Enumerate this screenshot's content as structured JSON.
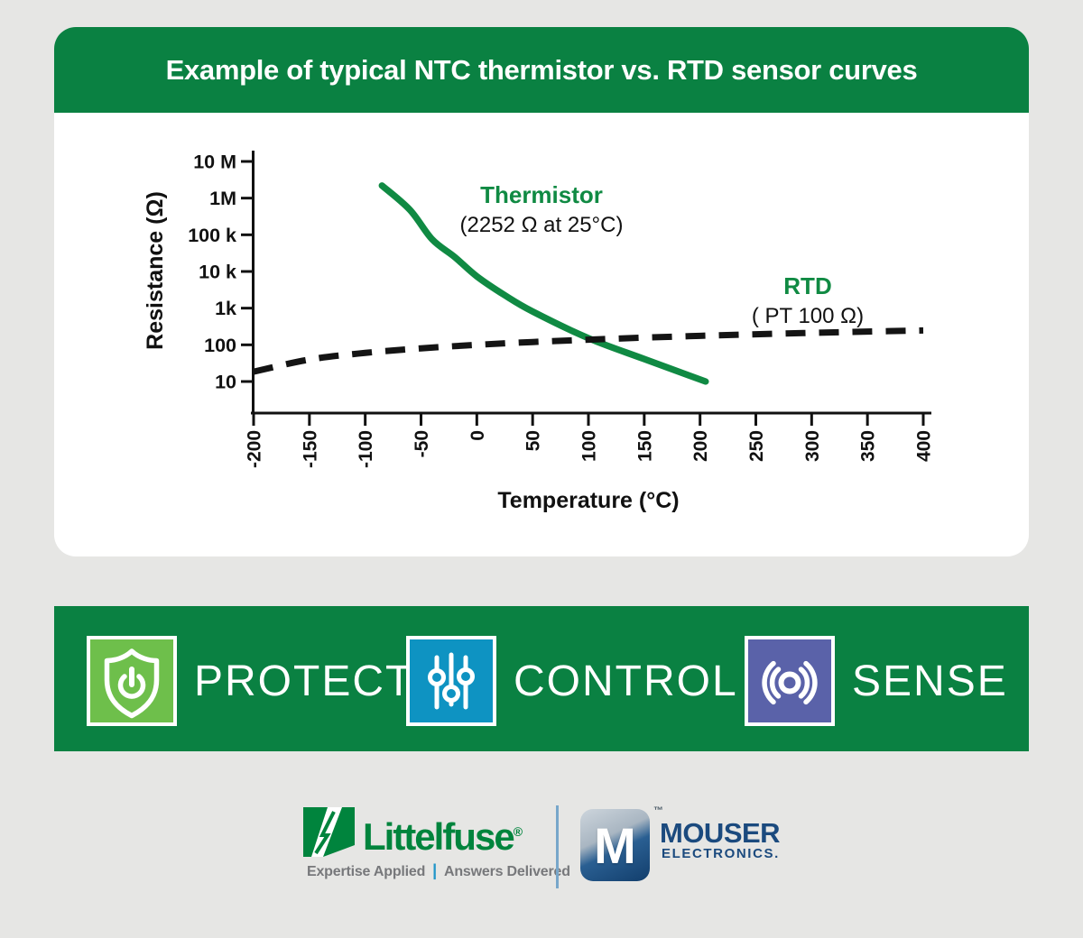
{
  "header": {
    "title": "Example of typical NTC thermistor vs. RTD sensor curves"
  },
  "chart_data": {
    "type": "line",
    "title": "Example of typical NTC thermistor vs. RTD sensor curves",
    "xlabel": "Temperature (°C)",
    "ylabel": "Resistance (Ω)",
    "x_axis": {
      "label": "Temperature (°C)",
      "ticks": [
        -200,
        -150,
        -100,
        -50,
        0,
        50,
        100,
        150,
        200,
        250,
        300,
        350,
        400
      ],
      "range": [
        -200,
        400
      ]
    },
    "y_axis": {
      "label": "Resistance (Ω)",
      "scale": "log10",
      "tick_labels": [
        "10 M",
        "1M",
        "100 k",
        "10 k",
        "1k",
        "100",
        "10"
      ],
      "tick_values": [
        10000000,
        1000000,
        100000,
        10000,
        1000,
        100,
        10
      ],
      "range": [
        10,
        10000000
      ]
    },
    "grid": false,
    "legend_position": "inline-annotations",
    "series": [
      {
        "name": "Thermistor",
        "annotation": "(2252 Ω at 25°C)",
        "color": "#108a43",
        "line_style": "solid",
        "points": [
          [
            -85,
            2200000
          ],
          [
            -60,
            480000
          ],
          [
            -40,
            75000
          ],
          [
            -20,
            25000
          ],
          [
            0,
            7355
          ],
          [
            25,
            2252
          ],
          [
            50,
            810
          ],
          [
            100,
            152
          ],
          [
            150,
            41
          ],
          [
            205,
            10
          ]
        ]
      },
      {
        "name": "RTD",
        "annotation": "( PT 100 Ω)",
        "color": "#141414",
        "line_style": "dashed",
        "points": [
          [
            -200,
            18.5
          ],
          [
            -150,
            39.7
          ],
          [
            -100,
            60.3
          ],
          [
            -50,
            80.3
          ],
          [
            0,
            100
          ],
          [
            50,
            119.4
          ],
          [
            100,
            138.5
          ],
          [
            150,
            157.3
          ],
          [
            200,
            175.9
          ],
          [
            250,
            194.1
          ],
          [
            300,
            212.1
          ],
          [
            350,
            229.7
          ],
          [
            400,
            247.1
          ]
        ]
      }
    ]
  },
  "band": {
    "items": [
      {
        "label": "PROTECT",
        "icon": "shield-power-icon",
        "tile_color": "#6ebf4b"
      },
      {
        "label": "CONTROL",
        "icon": "sliders-icon",
        "tile_color": "#0e93c2"
      },
      {
        "label": "SENSE",
        "icon": "sense-waves-icon",
        "tile_color": "#5a62a9"
      }
    ]
  },
  "footer": {
    "littelfuse": {
      "brand": "Littelfuse",
      "registered": "®",
      "tagline_left": "Expertise Applied",
      "tagline_separator": "|",
      "tagline_right": "Answers Delivered"
    },
    "mouser": {
      "monogram": "M",
      "trademark": "™",
      "brand": "MOUSER",
      "sub_brand": "ELECTRONICS."
    }
  },
  "colors": {
    "banner_green": "#0a8142",
    "curve_green": "#108a43",
    "protect_green": "#6ebf4b",
    "control_blue": "#0e93c2",
    "sense_purple": "#5a62a9",
    "littelfuse_green": "#00843d",
    "mouser_navy": "#1b4a7e",
    "page_bg": "#e6e6e4"
  }
}
